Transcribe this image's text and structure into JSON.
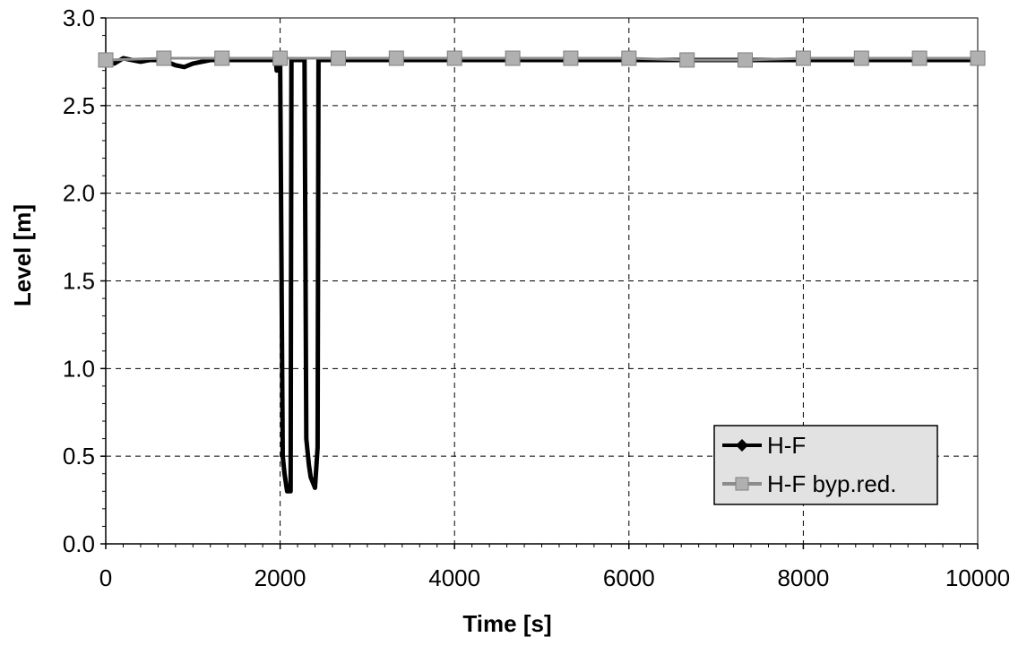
{
  "chart_data": {
    "type": "line",
    "title": "",
    "xlabel": "Time [s]",
    "ylabel": "Level [m]",
    "xlim": [
      0,
      10000
    ],
    "ylim": [
      0,
      3.0
    ],
    "xticks": [
      0,
      2000,
      4000,
      6000,
      8000,
      10000
    ],
    "xtick_labels": [
      "0",
      "2000",
      "4000",
      "6000",
      "8000",
      "10000"
    ],
    "yticks": [
      0,
      0.5,
      1.0,
      1.5,
      2.0,
      2.5,
      3.0
    ],
    "ytick_labels": [
      "0.0",
      "0.5",
      "1.0",
      "1.5",
      "2.0",
      "2.5",
      "3.0"
    ],
    "grid": true,
    "legend_position": "bottom-right",
    "series": [
      {
        "name": "H-F",
        "color": "#000000",
        "marker": "diamond",
        "x": [
          0,
          100,
          200,
          300,
          400,
          500,
          600,
          700,
          800,
          900,
          1000,
          1200,
          1500,
          1800,
          1950,
          1960,
          2000,
          2030,
          2050,
          2080,
          2100,
          2120,
          2130,
          2140,
          2150,
          2200,
          2250,
          2280,
          2300,
          2330,
          2350,
          2400,
          2410,
          2430,
          2440,
          2450,
          2460,
          2480,
          2500,
          2600,
          3000,
          4000,
          5000,
          6000,
          7000,
          8000,
          9000,
          10000
        ],
        "y": [
          2.76,
          2.74,
          2.77,
          2.76,
          2.75,
          2.76,
          2.76,
          2.75,
          2.73,
          2.72,
          2.74,
          2.76,
          2.76,
          2.76,
          2.76,
          2.7,
          2.76,
          0.5,
          0.4,
          0.3,
          0.3,
          0.3,
          2.76,
          2.76,
          2.76,
          2.76,
          2.76,
          2.76,
          0.6,
          0.45,
          0.38,
          0.32,
          0.4,
          0.55,
          2.76,
          2.76,
          2.76,
          2.76,
          2.76,
          2.76,
          2.76,
          2.76,
          2.76,
          2.76,
          2.76,
          2.76,
          2.76,
          2.76
        ]
      },
      {
        "name": "H-F byp.red.",
        "color": "#8c8c8c",
        "marker": "square",
        "x": [
          0,
          667,
          1333,
          2000,
          2667,
          3333,
          4000,
          4667,
          5333,
          6000,
          6667,
          7333,
          8000,
          8667,
          9333,
          10000
        ],
        "y": [
          2.76,
          2.77,
          2.77,
          2.77,
          2.77,
          2.77,
          2.77,
          2.77,
          2.77,
          2.77,
          2.76,
          2.76,
          2.77,
          2.77,
          2.77,
          2.77
        ]
      }
    ]
  }
}
